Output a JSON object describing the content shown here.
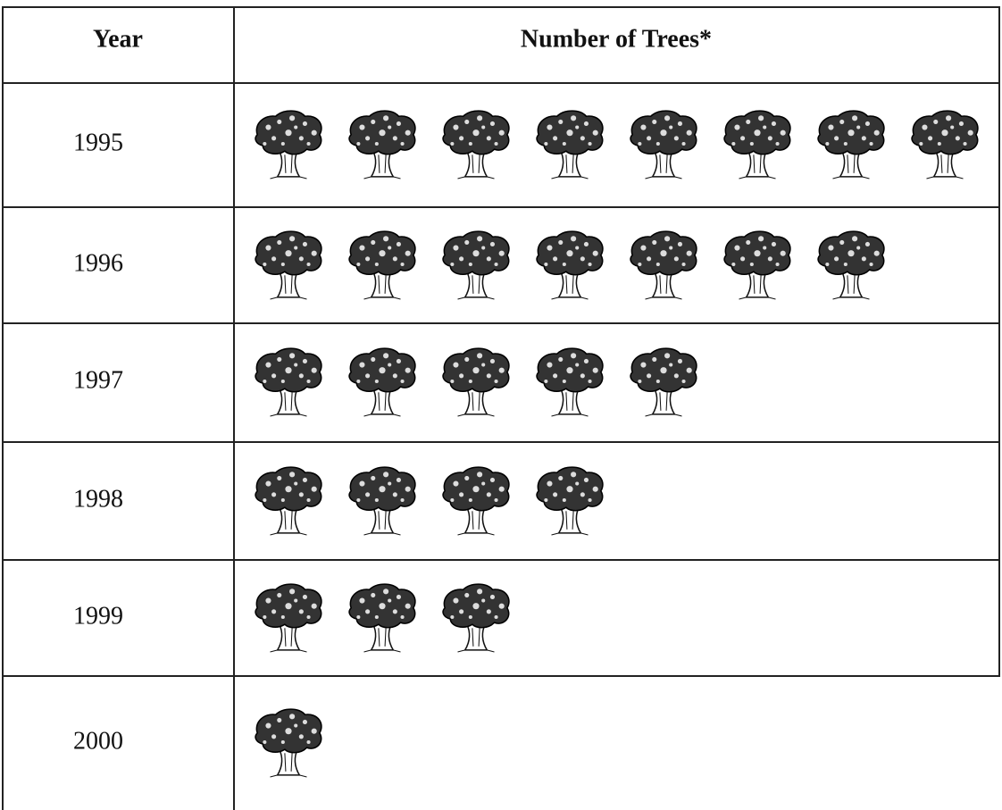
{
  "chart_data": {
    "type": "pictograph",
    "columns": [
      "Year",
      "Number of Trees*"
    ],
    "categories": [
      "1995",
      "1996",
      "1997",
      "1998",
      "1999",
      "2000"
    ],
    "values": [
      8,
      7,
      5,
      4,
      3,
      1
    ]
  }
}
